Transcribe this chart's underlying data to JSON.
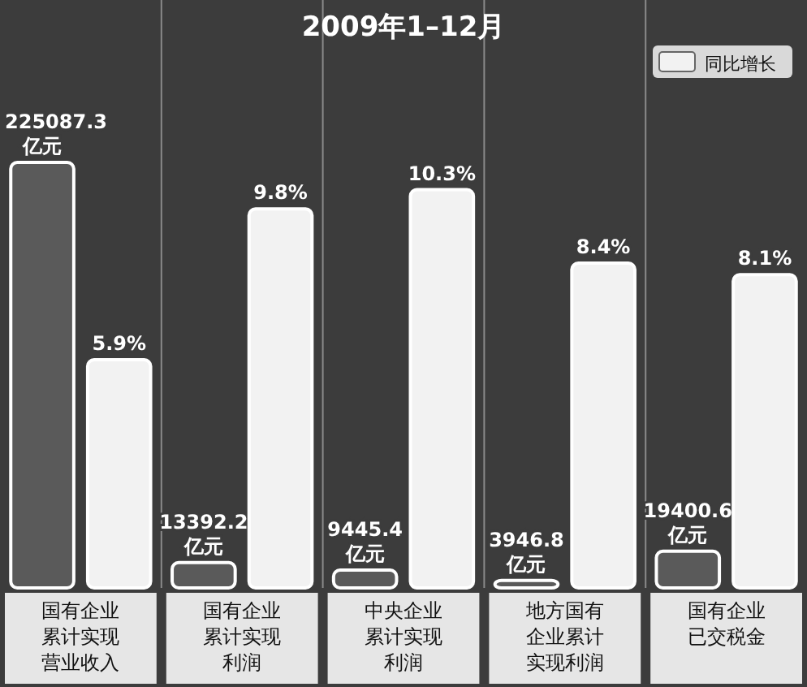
{
  "chart_data": {
    "type": "bar",
    "title": "2009年1–12月",
    "categories": [
      "国有企业累计实现营业收入",
      "国有企业累计实现利润",
      "中央企业累计实现利润",
      "地方国有企业累计实现利润",
      "国有企业已交税金"
    ],
    "series": [
      {
        "color": "#5a5a5a",
        "values": [
          225087.3,
          13392.2,
          9445.4,
          3946.8,
          19400.6
        ],
        "value_labels": [
          "225087.3 亿元",
          "13392.2 亿元",
          "9445.4 亿元",
          "3946.8 亿元",
          "19400.6 亿元"
        ]
      },
      {
        "name": "同比增长",
        "color": "#f2f2f2",
        "axis": "y2",
        "values": [
          5.9,
          9.8,
          10.3,
          8.4,
          8.1
        ],
        "value_labels": [
          "5.9%",
          "9.8%",
          "10.3%",
          "8.4%",
          "8.1%"
        ]
      }
    ],
    "legend": "top right"
  }
}
